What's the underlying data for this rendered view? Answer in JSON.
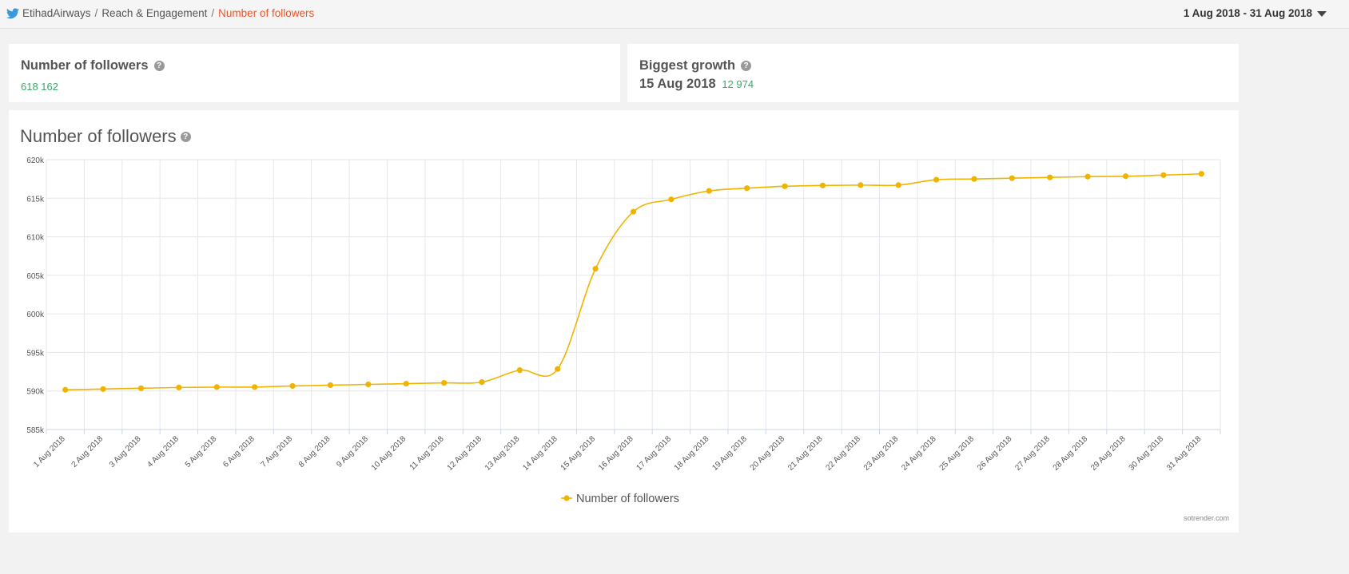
{
  "breadcrumb": {
    "account": "EtihadAirways",
    "section": "Reach & Engagement",
    "current": "Number of followers",
    "separator": "/"
  },
  "date_range": "1 Aug 2018 - 31 Aug 2018",
  "kpi_followers": {
    "title": "Number of followers",
    "value": "618 162"
  },
  "kpi_growth": {
    "title": "Biggest growth",
    "date": "15 Aug 2018",
    "value": "12 974"
  },
  "chart_panel": {
    "title": "Number of followers",
    "credit": "sotrender.com"
  },
  "colors": {
    "series": "#f0b400",
    "accent": "#e8562a",
    "positive": "#3aa868"
  },
  "chart_data": {
    "type": "line",
    "title": "Number of followers",
    "x": [
      "1 Aug 2018",
      "2 Aug 2018",
      "3 Aug 2018",
      "4 Aug 2018",
      "5 Aug 2018",
      "6 Aug 2018",
      "7 Aug 2018",
      "8 Aug 2018",
      "9 Aug 2018",
      "10 Aug 2018",
      "11 Aug 2018",
      "12 Aug 2018",
      "13 Aug 2018",
      "14 Aug 2018",
      "15 Aug 2018",
      "16 Aug 2018",
      "17 Aug 2018",
      "18 Aug 2018",
      "19 Aug 2018",
      "20 Aug 2018",
      "21 Aug 2018",
      "22 Aug 2018",
      "23 Aug 2018",
      "24 Aug 2018",
      "25 Aug 2018",
      "26 Aug 2018",
      "27 Aug 2018",
      "28 Aug 2018",
      "29 Aug 2018",
      "30 Aug 2018",
      "31 Aug 2018"
    ],
    "series": [
      {
        "name": "Number of followers",
        "values": [
          590150,
          590250,
          590350,
          590450,
          590500,
          590500,
          590650,
          590750,
          590850,
          590950,
          591050,
          591150,
          592700,
          592850,
          605850,
          613250,
          614850,
          615950,
          616300,
          616550,
          616650,
          616700,
          616700,
          617400,
          617500,
          617600,
          617700,
          617800,
          617850,
          618000,
          618162
        ]
      }
    ],
    "yticks": [
      585000,
      590000,
      595000,
      600000,
      605000,
      610000,
      615000,
      620000
    ],
    "ytick_labels": [
      "585k",
      "590k",
      "595k",
      "600k",
      "605k",
      "610k",
      "615k",
      "620k"
    ],
    "ylim": [
      585000,
      620000
    ],
    "grid": true,
    "legend": "bottom-center"
  }
}
